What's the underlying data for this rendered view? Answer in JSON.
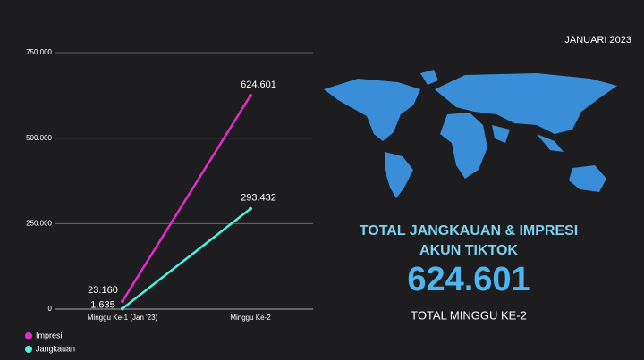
{
  "chart_data": {
    "type": "line",
    "categories": [
      "Minggu Ke-1 (Jan '23)",
      "Minggu Ke-2"
    ],
    "series": [
      {
        "name": "Impresi",
        "color": "#e52bd0",
        "values": [
          23160,
          624601
        ],
        "value_labels": [
          "23.160",
          "624.601"
        ]
      },
      {
        "name": "Jangkauan",
        "color": "#4ff0e0",
        "values": [
          1635,
          293432
        ],
        "value_labels": [
          "1.635",
          "293.432"
        ]
      }
    ],
    "ylim": [
      0,
      750000
    ],
    "yticks": [
      0,
      {
        "value": 250000,
        "label": "250.000"
      },
      {
        "value": 500000,
        "label": "500.000"
      },
      {
        "value": 750000,
        "label": "750.000"
      }
    ],
    "grid": true
  },
  "panel": {
    "date": "JANUARI 2023",
    "heading_1": "TOTAL JANGKAUAN & IMPRESI",
    "heading_2": "AKUN TIKTOK",
    "total": "624.601",
    "caption": "TOTAL  MINGGU KE-2"
  }
}
